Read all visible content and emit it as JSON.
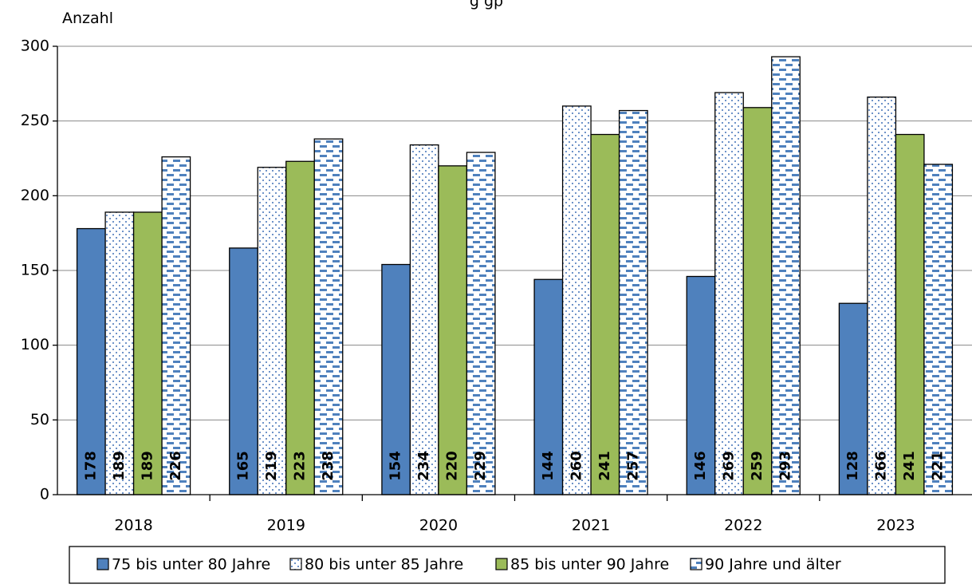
{
  "chart_data": {
    "type": "bar",
    "title": "g  gp",
    "ylabel": "Anzahl",
    "xlabel": "",
    "categories": [
      "2018",
      "2019",
      "2020",
      "2021",
      "2022",
      "2023"
    ],
    "ylim": [
      0,
      300
    ],
    "yticks": [
      0,
      50,
      100,
      150,
      200,
      250,
      300
    ],
    "grid": true,
    "legend_position": "bottom",
    "series": [
      {
        "name": "75 bis unter 80 Jahre",
        "values": [
          178,
          165,
          154,
          144,
          146,
          128
        ],
        "fill": "#4f81bd",
        "pattern": "solid"
      },
      {
        "name": "80 bis unter 85 Jahre",
        "values": [
          189,
          219,
          234,
          260,
          269,
          266
        ],
        "fill": "#ffffff",
        "pattern": "dots"
      },
      {
        "name": "85 bis unter 90 Jahre",
        "values": [
          189,
          223,
          220,
          241,
          259,
          241
        ],
        "fill": "#9bbb59",
        "pattern": "solid"
      },
      {
        "name": "90 Jahre und älter",
        "values": [
          226,
          238,
          229,
          257,
          293,
          221
        ],
        "fill": "#ffffff",
        "pattern": "dashes"
      }
    ]
  }
}
